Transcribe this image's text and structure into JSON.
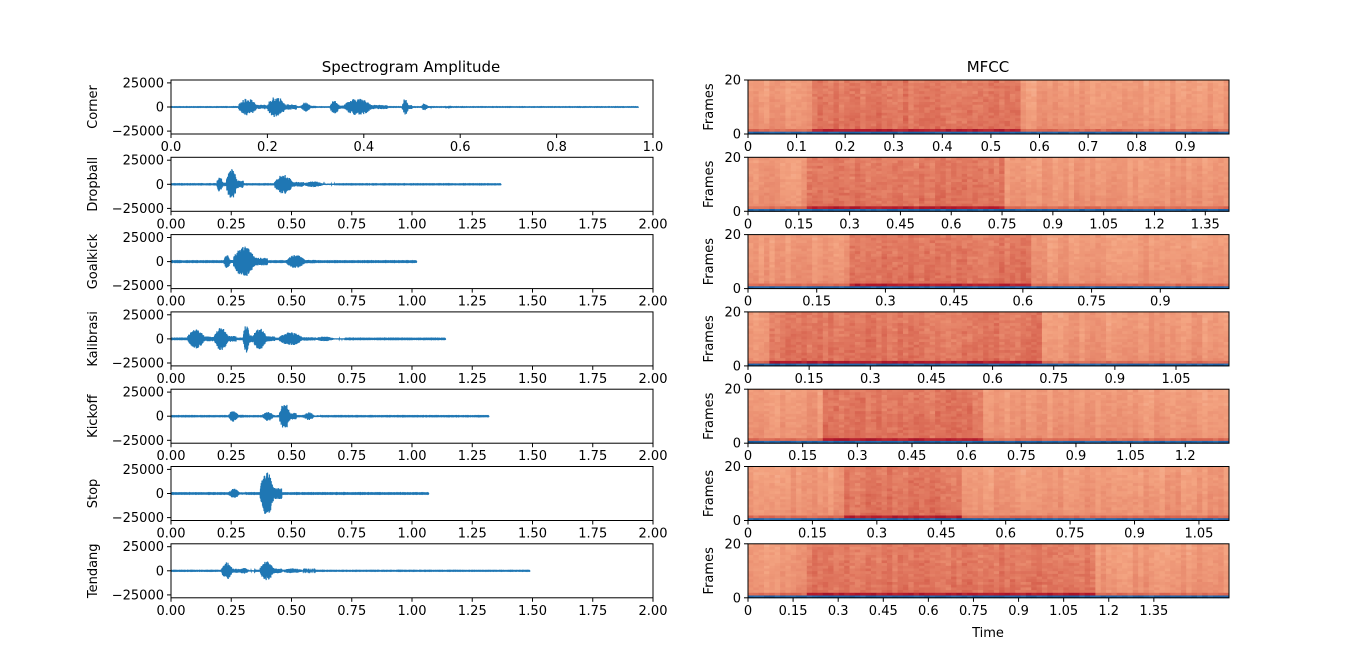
{
  "figure": {
    "left_title": "Spectrogram Amplitude",
    "right_title": "MFCC",
    "mfcc_xlabel": "Time",
    "mfcc_ylabel": "Frames",
    "waveform_color": "#1f77b4",
    "mfcc_colormap": "RdBu_r"
  },
  "chart_data": [
    {
      "type": "line",
      "panel": "waveform",
      "ylabel": "Corner",
      "xlim": [
        0,
        1.0
      ],
      "ylim": [
        -28000,
        28000
      ],
      "xticks": [
        "0.0",
        "0.2",
        "0.4",
        "0.6",
        "0.8",
        "1.0"
      ],
      "yticks": [
        "25000",
        "0",
        "−25000"
      ],
      "duration": 0.97,
      "bursts": [
        {
          "start": 0.14,
          "end": 0.2,
          "amp": 9000
        },
        {
          "start": 0.2,
          "end": 0.26,
          "amp": 11000
        },
        {
          "start": 0.27,
          "end": 0.3,
          "amp": 5000
        },
        {
          "start": 0.33,
          "end": 0.36,
          "amp": 7000
        },
        {
          "start": 0.36,
          "end": 0.45,
          "amp": 9000
        },
        {
          "start": 0.48,
          "end": 0.5,
          "amp": 9000
        },
        {
          "start": 0.52,
          "end": 0.54,
          "amp": 4000
        },
        {
          "start": 0.57,
          "end": 0.58,
          "amp": 1500
        }
      ]
    },
    {
      "type": "line",
      "panel": "waveform",
      "ylabel": "Dropball",
      "xlim": [
        0,
        2.0
      ],
      "ylim": [
        -28000,
        28000
      ],
      "xticks": [
        "0.00",
        "0.25",
        "0.50",
        "0.75",
        "1.00",
        "1.25",
        "1.50",
        "1.75",
        "2.00"
      ],
      "yticks": [
        "25000",
        "0",
        "−25000"
      ],
      "duration": 1.37,
      "bursts": [
        {
          "start": 0.19,
          "end": 0.23,
          "amp": 8000
        },
        {
          "start": 0.23,
          "end": 0.3,
          "amp": 16000
        },
        {
          "start": 0.43,
          "end": 0.55,
          "amp": 10000
        },
        {
          "start": 0.55,
          "end": 0.68,
          "amp": 3000
        }
      ]
    },
    {
      "type": "line",
      "panel": "waveform",
      "ylabel": "Goalkick",
      "xlim": [
        0,
        2.0
      ],
      "ylim": [
        -28000,
        28000
      ],
      "xticks": [
        "0.00",
        "0.25",
        "0.50",
        "0.75",
        "1.00",
        "1.25",
        "1.50",
        "1.75",
        "2.00"
      ],
      "yticks": [
        "25000",
        "0",
        "−25000"
      ],
      "duration": 1.02,
      "bursts": [
        {
          "start": 0.22,
          "end": 0.26,
          "amp": 7000
        },
        {
          "start": 0.26,
          "end": 0.4,
          "amp": 16000
        },
        {
          "start": 0.48,
          "end": 0.6,
          "amp": 7000
        }
      ]
    },
    {
      "type": "line",
      "panel": "waveform",
      "ylabel": "Kalibrasi",
      "xlim": [
        0,
        2.0
      ],
      "ylim": [
        -28000,
        28000
      ],
      "xticks": [
        "0.00",
        "0.25",
        "0.50",
        "0.75",
        "1.00",
        "1.25",
        "1.50",
        "1.75",
        "2.00"
      ],
      "yticks": [
        "25000",
        "0",
        "−25000"
      ],
      "duration": 1.14,
      "bursts": [
        {
          "start": 0.07,
          "end": 0.18,
          "amp": 10000
        },
        {
          "start": 0.18,
          "end": 0.27,
          "amp": 12000
        },
        {
          "start": 0.3,
          "end": 0.34,
          "amp": 15000
        },
        {
          "start": 0.34,
          "end": 0.43,
          "amp": 11000
        },
        {
          "start": 0.45,
          "end": 0.6,
          "amp": 7000
        },
        {
          "start": 0.6,
          "end": 0.72,
          "amp": 2500
        }
      ]
    },
    {
      "type": "line",
      "panel": "waveform",
      "ylabel": "Kickoff",
      "xlim": [
        0,
        2.0
      ],
      "ylim": [
        -28000,
        28000
      ],
      "xticks": [
        "0.00",
        "0.25",
        "0.50",
        "0.75",
        "1.00",
        "1.25",
        "1.50",
        "1.75",
        "2.00"
      ],
      "yticks": [
        "25000",
        "0",
        "−25000"
      ],
      "duration": 1.32,
      "bursts": [
        {
          "start": 0.24,
          "end": 0.3,
          "amp": 6000
        },
        {
          "start": 0.38,
          "end": 0.45,
          "amp": 5000
        },
        {
          "start": 0.45,
          "end": 0.52,
          "amp": 14000
        },
        {
          "start": 0.55,
          "end": 0.62,
          "amp": 4000
        }
      ]
    },
    {
      "type": "line",
      "panel": "waveform",
      "ylabel": "Stop",
      "xlim": [
        0,
        2.0
      ],
      "ylim": [
        -28000,
        28000
      ],
      "xticks": [
        "0.00",
        "0.25",
        "0.50",
        "0.75",
        "1.00",
        "1.25",
        "1.50",
        "1.75",
        "2.00"
      ],
      "yticks": [
        "25000",
        "0",
        "−25000"
      ],
      "duration": 1.07,
      "bursts": [
        {
          "start": 0.24,
          "end": 0.31,
          "amp": 5000
        },
        {
          "start": 0.37,
          "end": 0.46,
          "amp": 23000
        }
      ]
    },
    {
      "type": "line",
      "panel": "waveform",
      "ylabel": "Tendang",
      "xlim": [
        0,
        2.0
      ],
      "ylim": [
        -28000,
        28000
      ],
      "xticks": [
        "0.00",
        "0.25",
        "0.50",
        "0.75",
        "1.00",
        "1.25",
        "1.50",
        "1.75",
        "2.00"
      ],
      "yticks": [
        "25000",
        "0",
        "−25000"
      ],
      "duration": 1.49,
      "bursts": [
        {
          "start": 0.21,
          "end": 0.28,
          "amp": 9000
        },
        {
          "start": 0.28,
          "end": 0.35,
          "amp": 3000
        },
        {
          "start": 0.37,
          "end": 0.46,
          "amp": 10000
        },
        {
          "start": 0.46,
          "end": 0.6,
          "amp": 2500
        }
      ]
    },
    {
      "type": "heatmap",
      "panel": "mfcc",
      "xlim": [
        0,
        0.99
      ],
      "ylim": [
        0,
        20
      ],
      "xticks": [
        "0",
        "0.1",
        "0.2",
        "0.3",
        "0.4",
        "0.5",
        "0.6",
        "0.7",
        "0.8",
        "0.9"
      ],
      "yticks": [
        "0",
        "20"
      ],
      "active": [
        0.13,
        0.56
      ]
    },
    {
      "type": "heatmap",
      "panel": "mfcc",
      "xlim": [
        0,
        1.42
      ],
      "ylim": [
        0,
        20
      ],
      "xticks": [
        "0",
        "0.15",
        "0.3",
        "0.45",
        "0.6",
        "0.75",
        "0.9",
        "1.05",
        "1.2",
        "1.35"
      ],
      "yticks": [
        "0",
        "20"
      ],
      "active": [
        0.18,
        0.75
      ]
    },
    {
      "type": "heatmap",
      "panel": "mfcc",
      "xlim": [
        0,
        1.05
      ],
      "ylim": [
        0,
        20
      ],
      "xticks": [
        "0",
        "0.15",
        "0.3",
        "0.45",
        "0.6",
        "0.75",
        "0.9"
      ],
      "yticks": [
        "0",
        "20"
      ],
      "active": [
        0.22,
        0.62
      ]
    },
    {
      "type": "heatmap",
      "panel": "mfcc",
      "xlim": [
        0,
        1.18
      ],
      "ylim": [
        0,
        20
      ],
      "xticks": [
        "0",
        "0.15",
        "0.3",
        "0.45",
        "0.6",
        "0.75",
        "0.9",
        "1.05"
      ],
      "yticks": [
        "0",
        "20"
      ],
      "active": [
        0.05,
        0.72
      ]
    },
    {
      "type": "heatmap",
      "panel": "mfcc",
      "xlim": [
        0,
        1.32
      ],
      "ylim": [
        0,
        20
      ],
      "xticks": [
        "0",
        "0.15",
        "0.3",
        "0.45",
        "0.6",
        "0.75",
        "0.9",
        "1.05",
        "1.2"
      ],
      "yticks": [
        "0",
        "20"
      ],
      "active": [
        0.2,
        0.65
      ]
    },
    {
      "type": "heatmap",
      "panel": "mfcc",
      "xlim": [
        0,
        1.12
      ],
      "ylim": [
        0,
        20
      ],
      "xticks": [
        "0",
        "0.15",
        "0.3",
        "0.45",
        "0.6",
        "0.75",
        "0.9",
        "1.05"
      ],
      "yticks": [
        "0",
        "20"
      ],
      "active": [
        0.23,
        0.5
      ]
    },
    {
      "type": "heatmap",
      "panel": "mfcc",
      "xlim": [
        0,
        1.6
      ],
      "ylim": [
        0,
        20
      ],
      "xticks": [
        "0",
        "0.15",
        "0.3",
        "0.45",
        "0.6",
        "0.75",
        "0.9",
        "1.05",
        "1.2",
        "1.35"
      ],
      "yticks": [
        "0",
        "20"
      ],
      "active": [
        0.2,
        1.15
      ]
    }
  ]
}
